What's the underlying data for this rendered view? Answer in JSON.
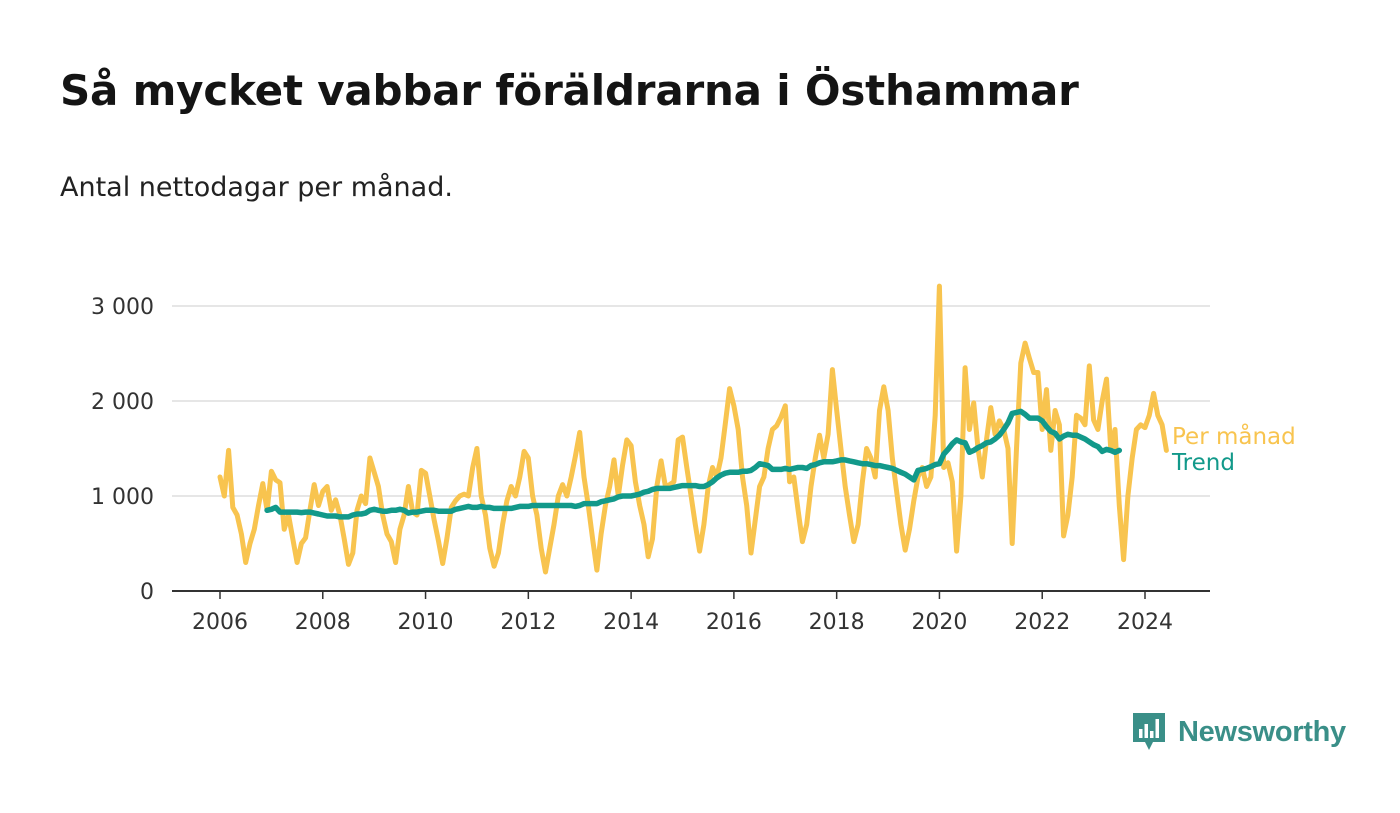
{
  "chart_data": {
    "type": "line",
    "title": "Så mycket vabbar föräldrarna i Östhammar",
    "subtitle": "Antal nettodagar per månad.",
    "xlabel": "",
    "ylabel": "",
    "xlim": [
      2006,
      2024.5
    ],
    "ylim": [
      0,
      3000
    ],
    "x_ticks": [
      "2006",
      "2008",
      "2010",
      "2012",
      "2014",
      "2016",
      "2018",
      "2020",
      "2022",
      "2024"
    ],
    "y_ticks": [
      "0",
      "1 000",
      "2 000",
      "3 000"
    ],
    "colors": {
      "monthly": "#f8c44f",
      "trend": "#12998a",
      "grid": "#dddddd",
      "axis": "#333333"
    },
    "series": [
      {
        "name": "Per månad",
        "start": [
          2006,
          1
        ],
        "values": [
          1200,
          1000,
          1480,
          880,
          800,
          600,
          300,
          500,
          650,
          900,
          1130,
          850,
          1260,
          1170,
          1140,
          650,
          800,
          550,
          300,
          500,
          560,
          850,
          1120,
          900,
          1050,
          1100,
          850,
          960,
          800,
          550,
          280,
          400,
          850,
          1000,
          920,
          1400,
          1250,
          1100,
          800,
          600,
          520,
          300,
          650,
          800,
          1100,
          830,
          800,
          1270,
          1240,
          1000,
          750,
          530,
          290,
          560,
          880,
          950,
          1000,
          1020,
          1000,
          1300,
          1500,
          1000,
          800,
          450,
          260,
          400,
          700,
          950,
          1100,
          1000,
          1200,
          1470,
          1400,
          1000,
          800,
          450,
          200,
          450,
          700,
          1000,
          1120,
          1000,
          1200,
          1420,
          1670,
          1200,
          900,
          550,
          220,
          600,
          900,
          1100,
          1380,
          1000,
          1320,
          1590,
          1530,
          1150,
          900,
          700,
          360,
          550,
          1100,
          1370,
          1100,
          1120,
          1150,
          1590,
          1620,
          1300,
          1000,
          700,
          420,
          700,
          1100,
          1300,
          1200,
          1400,
          1760,
          2130,
          1950,
          1700,
          1200,
          900,
          400,
          750,
          1100,
          1200,
          1500,
          1700,
          1740,
          1830,
          1950,
          1150,
          1200,
          850,
          520,
          700,
          1100,
          1400,
          1640,
          1400,
          1650,
          2330,
          1900,
          1500,
          1100,
          800,
          520,
          700,
          1150,
          1500,
          1400,
          1200,
          1900,
          2150,
          1900,
          1400,
          1050,
          700,
          430,
          650,
          950,
          1200,
          1300,
          1100,
          1200,
          1850,
          3210,
          1300,
          1350,
          1150,
          420,
          1000,
          2350,
          1700,
          1980,
          1500,
          1200,
          1600,
          1930,
          1650,
          1790,
          1700,
          1500,
          500,
          1500,
          2400,
          2610,
          2450,
          2300,
          2300,
          1700,
          2120,
          1480,
          1900,
          1750,
          580,
          800,
          1200,
          1850,
          1820,
          1750,
          2370,
          1800,
          1700,
          2000,
          2230,
          1500,
          1700,
          900,
          330,
          1000,
          1400,
          1700,
          1750,
          1720,
          1850,
          2080,
          1850,
          1750,
          1480
        ]
      },
      {
        "name": "Trend",
        "start": [
          2006,
          12
        ],
        "values": [
          850,
          860,
          880,
          830,
          830,
          830,
          830,
          830,
          825,
          830,
          830,
          820,
          810,
          800,
          790,
          790,
          790,
          780,
          780,
          780,
          800,
          810,
          810,
          820,
          850,
          860,
          850,
          840,
          840,
          850,
          850,
          860,
          850,
          820,
          830,
          830,
          840,
          850,
          850,
          850,
          840,
          840,
          840,
          840,
          860,
          870,
          880,
          890,
          880,
          880,
          890,
          880,
          880,
          870,
          870,
          870,
          870,
          870,
          880,
          890,
          890,
          890,
          900,
          900,
          900,
          900,
          900,
          900,
          900,
          900,
          900,
          900,
          890,
          900,
          920,
          920,
          920,
          920,
          940,
          950,
          960,
          970,
          990,
          1000,
          1000,
          1000,
          1010,
          1020,
          1040,
          1050,
          1070,
          1080,
          1080,
          1080,
          1080,
          1090,
          1100,
          1110,
          1110,
          1110,
          1110,
          1100,
          1100,
          1120,
          1150,
          1190,
          1220,
          1240,
          1250,
          1250,
          1250,
          1260,
          1260,
          1270,
          1300,
          1340,
          1330,
          1320,
          1280,
          1280,
          1280,
          1290,
          1280,
          1290,
          1300,
          1300,
          1290,
          1320,
          1330,
          1350,
          1360,
          1360,
          1360,
          1370,
          1380,
          1380,
          1370,
          1360,
          1350,
          1340,
          1340,
          1330,
          1320,
          1320,
          1310,
          1300,
          1290,
          1270,
          1250,
          1230,
          1200,
          1170,
          1270,
          1280,
          1290,
          1310,
          1330,
          1340,
          1440,
          1490,
          1550,
          1590,
          1570,
          1560,
          1460,
          1480,
          1510,
          1530,
          1560,
          1570,
          1600,
          1640,
          1700,
          1770,
          1870,
          1880,
          1890,
          1860,
          1820,
          1820,
          1820,
          1790,
          1730,
          1680,
          1660,
          1600,
          1630,
          1650,
          1640,
          1640,
          1620,
          1600,
          1570,
          1540,
          1520,
          1470,
          1490,
          1480,
          1460,
          1480
        ]
      }
    ]
  },
  "legend": {
    "monthly": "Per månad",
    "trend": "Trend"
  },
  "brand": {
    "name": "Newsworthy",
    "color": "#3a8f88",
    "icon": "newsworthy-logo-icon"
  }
}
